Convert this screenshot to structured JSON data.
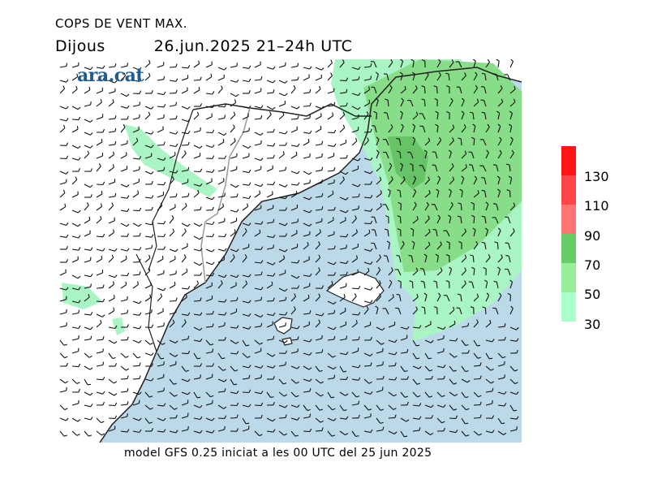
{
  "title": "COPS DE VENT MAX.",
  "day": "Dijous",
  "datetime": "26.jun.2025 21–24h UTC",
  "logo": "ara.cat",
  "footer": "model GFS 0.25 iniciat a les 00 UTC del 25 jun 2025",
  "legend": {
    "levels": [
      {
        "label": "130",
        "color": "#ff2020"
      },
      {
        "label": "110",
        "color": "#ff4a4a"
      },
      {
        "label": "90",
        "color": "#ff7070"
      },
      {
        "label": "70",
        "color": "#66cc66"
      },
      {
        "label": "50",
        "color": "#99ee99"
      },
      {
        "label": "30",
        "color": "#aaffcc"
      }
    ],
    "bottom_label": "30"
  },
  "colors": {
    "sea": "#bcd9ea",
    "land": "#ffffff",
    "gust_30_50": "#aaf5c4",
    "gust_50_70": "#88dd88",
    "gust_70_90": "#66c466",
    "coast": "#222222",
    "border": "#999999"
  }
}
